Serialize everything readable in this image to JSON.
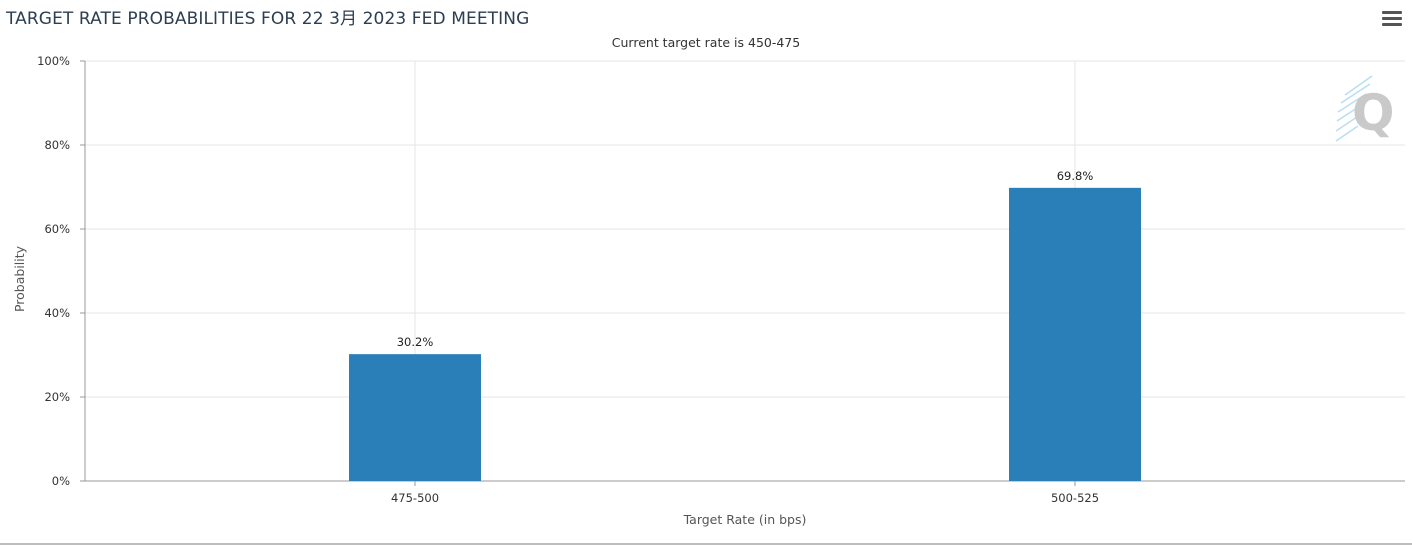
{
  "title": "TARGET RATE PROBABILITIES FOR 22 3月 2023 FED MEETING",
  "subtitle": "Current target rate is 450-475",
  "menu_icon": "hamburger-menu-icon",
  "watermark_icon": "q-logo-icon",
  "colors": {
    "bar": "#2a7fb8",
    "grid": "#e6e6e6",
    "axis": "#999999",
    "text": "#333333"
  },
  "chart_data": {
    "type": "bar",
    "categories": [
      "475-500",
      "500-525"
    ],
    "values": [
      30.2,
      69.8
    ],
    "data_labels": [
      "30.2%",
      "69.8%"
    ],
    "title": "TARGET RATE PROBABILITIES FOR 22 3月 2023 FED MEETING",
    "subtitle": "Current target rate is 450-475",
    "xlabel": "Target Rate (in bps)",
    "ylabel": "Probability",
    "ylim": [
      0,
      100
    ],
    "yticks": [
      0,
      20,
      40,
      60,
      80,
      100
    ],
    "ytick_labels": [
      "0%",
      "20%",
      "40%",
      "60%",
      "80%",
      "100%"
    ],
    "grid": true,
    "legend": "none"
  }
}
